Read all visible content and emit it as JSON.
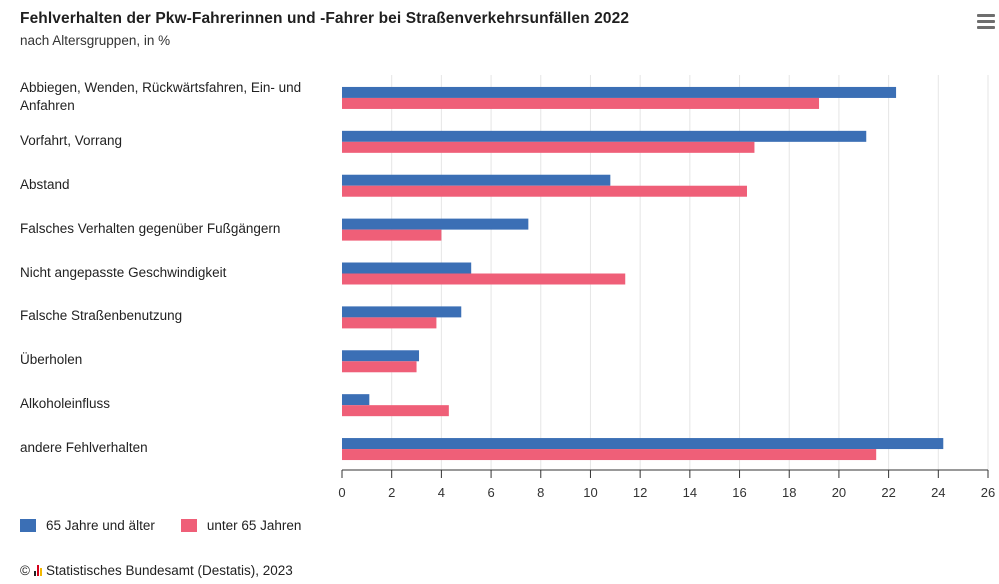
{
  "header": {
    "title": "Fehlverhalten der Pkw-Fahrerinnen und -Fahrer bei Straßenverkehrsunfällen 2022",
    "subtitle": "nach Altersgruppen, in %"
  },
  "menu": {
    "icon": "hamburger-menu-icon"
  },
  "colors": {
    "series_1": "#3b6fb5",
    "series_2": "#ef5f78",
    "grid": "#e6e6e6",
    "axis": "#333333"
  },
  "legend": {
    "items": [
      {
        "label": "65 Jahre und älter"
      },
      {
        "label": "unter 65 Jahren"
      }
    ]
  },
  "source": {
    "prefix": "©",
    "text": "Statistisches Bundesamt (Destatis), 2023"
  },
  "chart_data": {
    "type": "bar",
    "orientation": "horizontal",
    "title": "Fehlverhalten der Pkw-Fahrerinnen und -Fahrer bei Straßenverkehrsunfällen 2022",
    "subtitle": "nach Altersgruppen, in %",
    "categories": [
      "Abbiegen, Wenden, Rückwärtsfahren, Ein- und Anfahren",
      "Vorfahrt, Vorrang",
      "Abstand",
      "Falsches Verhalten gegenüber Fußgängern",
      "Nicht angepasste Geschwindigkeit",
      "Falsche Straßenbenutzung",
      "Überholen",
      "Alkoholeinfluss",
      "andere Fehlverhalten"
    ],
    "series": [
      {
        "name": "65 Jahre und älter",
        "values": [
          22.3,
          21.1,
          10.8,
          7.5,
          5.2,
          4.8,
          3.1,
          1.1,
          24.2
        ]
      },
      {
        "name": "unter 65 Jahren",
        "values": [
          19.2,
          16.6,
          16.3,
          4.0,
          11.4,
          3.8,
          3.0,
          4.3,
          21.5
        ]
      }
    ],
    "xlim": [
      0,
      26
    ],
    "xticks": [
      0,
      2,
      4,
      6,
      8,
      10,
      12,
      14,
      16,
      18,
      20,
      22,
      24,
      26
    ],
    "grid": true,
    "legend_position": "bottom-left"
  }
}
